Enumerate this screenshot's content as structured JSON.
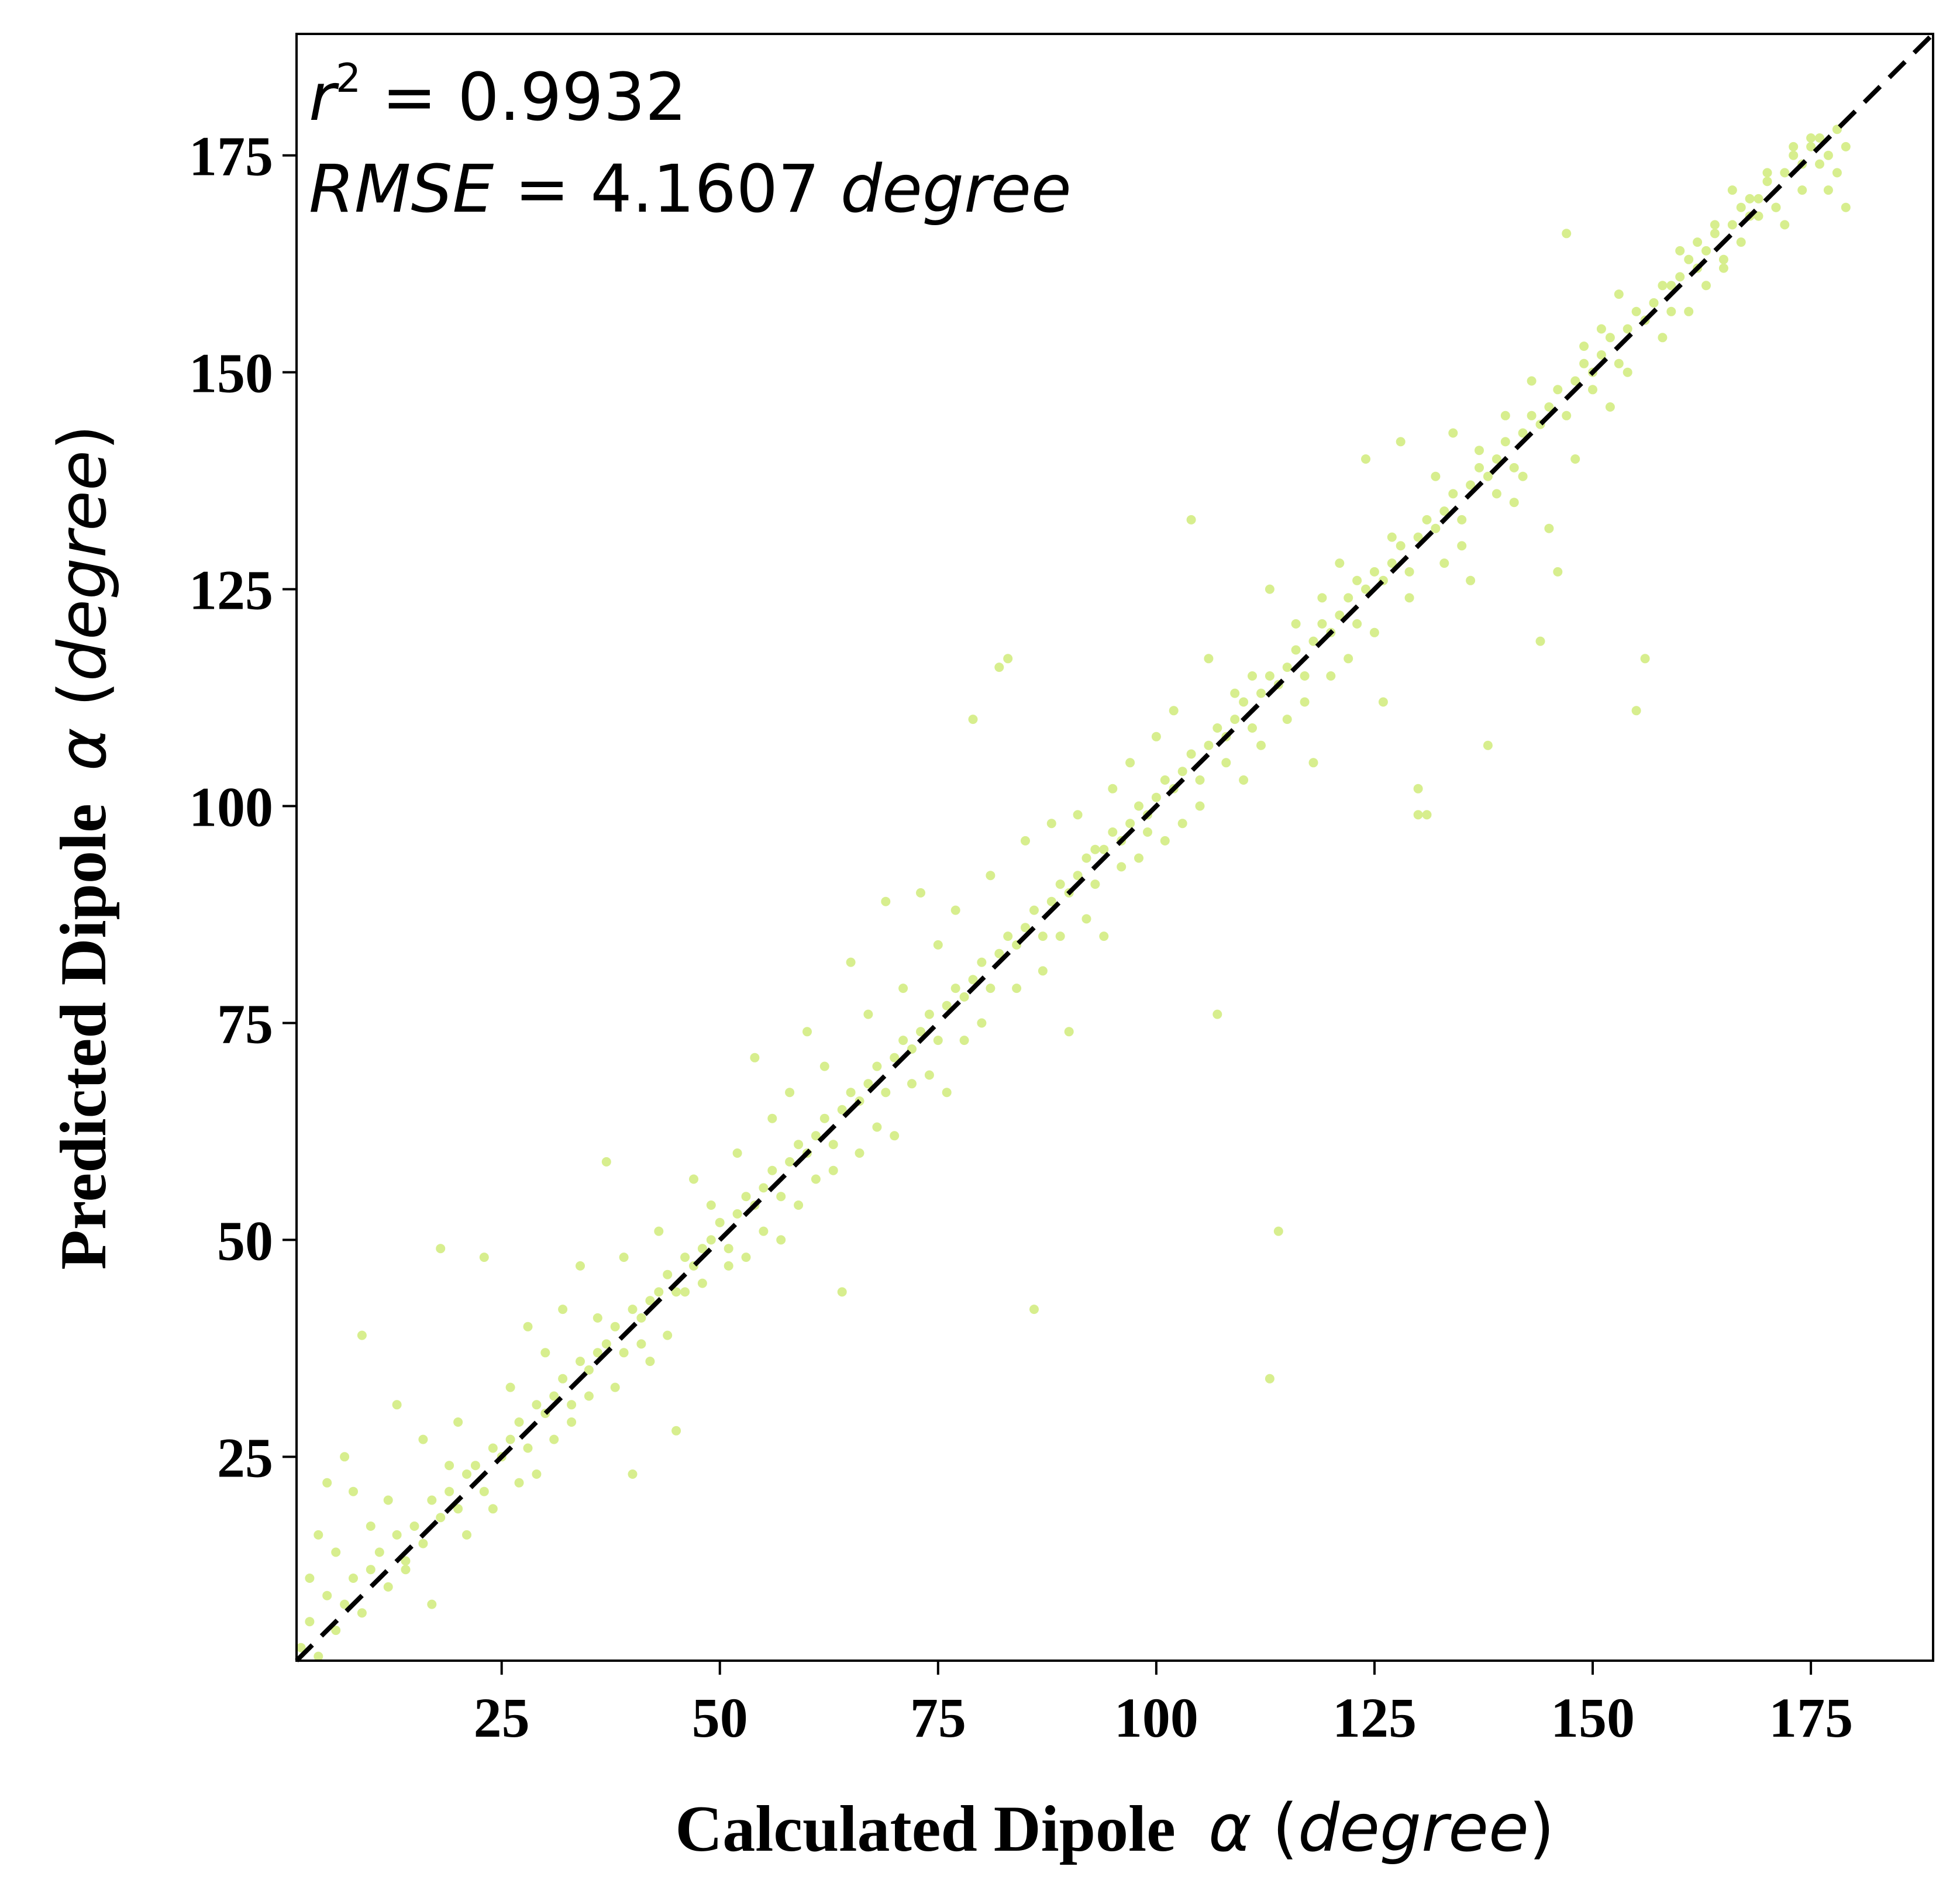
{
  "chart_data": {
    "type": "scatter",
    "title": "",
    "xlabel": {
      "text": "Calculated Dipole",
      "symbol": "α",
      "unit": "degree"
    },
    "ylabel": {
      "text": "Predicted  Dipole",
      "symbol": "α",
      "unit": "degree"
    },
    "xlim": [
      1.5,
      189
    ],
    "ylim": [
      1.5,
      189
    ],
    "xticks": [
      25,
      50,
      75,
      100,
      125,
      150,
      175
    ],
    "yticks": [
      25,
      50,
      75,
      100,
      125,
      150,
      175
    ],
    "xtick_labels": [
      "25",
      "50",
      "75",
      "100",
      "125",
      "150",
      "175"
    ],
    "ytick_labels": [
      "25",
      "50",
      "75",
      "100",
      "125",
      "150",
      "175"
    ],
    "grid": false,
    "reference_line": {
      "style": "dashed",
      "color": "#000000",
      "from": [
        1.5,
        1.5
      ],
      "to": [
        189,
        189
      ]
    },
    "marker_color": "#d7ee8e",
    "annotations": {
      "r2_label": "r",
      "r2_sup": "2",
      "r2_eq": " = ",
      "r2_value": "0.9932",
      "rmse_label": "RMSE",
      "rmse_eq": " = ",
      "rmse_value": "4.1607 ",
      "rmse_unit": "degree"
    },
    "points": [
      [
        2,
        3
      ],
      [
        3,
        6
      ],
      [
        4,
        2
      ],
      [
        5,
        9
      ],
      [
        6,
        5
      ],
      [
        7,
        8
      ],
      [
        8,
        11
      ],
      [
        9,
        7
      ],
      [
        10,
        12
      ],
      [
        11,
        14
      ],
      [
        12,
        10
      ],
      [
        13,
        16
      ],
      [
        14,
        13
      ],
      [
        15,
        17
      ],
      [
        16,
        15
      ],
      [
        17,
        20
      ],
      [
        18,
        18
      ],
      [
        19,
        21
      ],
      [
        20,
        19
      ],
      [
        21,
        23
      ],
      [
        22,
        24
      ],
      [
        23,
        21
      ],
      [
        24,
        26
      ],
      [
        25,
        25
      ],
      [
        26,
        27
      ],
      [
        27,
        29
      ],
      [
        28,
        26
      ],
      [
        29,
        31
      ],
      [
        30,
        30
      ],
      [
        31,
        32
      ],
      [
        32,
        34
      ],
      [
        33,
        31
      ],
      [
        34,
        36
      ],
      [
        35,
        35
      ],
      [
        36,
        37
      ],
      [
        37,
        38
      ],
      [
        38,
        40
      ],
      [
        39,
        37
      ],
      [
        40,
        42
      ],
      [
        41,
        41
      ],
      [
        42,
        43
      ],
      [
        43,
        44
      ],
      [
        44,
        46
      ],
      [
        45,
        44
      ],
      [
        46,
        48
      ],
      [
        47,
        47
      ],
      [
        48,
        49
      ],
      [
        49,
        50
      ],
      [
        50,
        52
      ],
      [
        51,
        49
      ],
      [
        52,
        53
      ],
      [
        53,
        55
      ],
      [
        54,
        54
      ],
      [
        55,
        56
      ],
      [
        56,
        58
      ],
      [
        57,
        55
      ],
      [
        58,
        59
      ],
      [
        59,
        61
      ],
      [
        60,
        60
      ],
      [
        61,
        62
      ],
      [
        62,
        64
      ],
      [
        63,
        61
      ],
      [
        64,
        65
      ],
      [
        65,
        67
      ],
      [
        66,
        66
      ],
      [
        67,
        68
      ],
      [
        68,
        70
      ],
      [
        69,
        67
      ],
      [
        70,
        71
      ],
      [
        71,
        73
      ],
      [
        72,
        72
      ],
      [
        73,
        74
      ],
      [
        74,
        76
      ],
      [
        75,
        73
      ],
      [
        76,
        77
      ],
      [
        77,
        79
      ],
      [
        78,
        78
      ],
      [
        79,
        80
      ],
      [
        80,
        82
      ],
      [
        81,
        79
      ],
      [
        82,
        83
      ],
      [
        83,
        85
      ],
      [
        84,
        84
      ],
      [
        85,
        86
      ],
      [
        86,
        88
      ],
      [
        87,
        85
      ],
      [
        88,
        89
      ],
      [
        89,
        91
      ],
      [
        90,
        90
      ],
      [
        91,
        92
      ],
      [
        92,
        94
      ],
      [
        93,
        91
      ],
      [
        94,
        95
      ],
      [
        95,
        97
      ],
      [
        96,
        96
      ],
      [
        97,
        98
      ],
      [
        98,
        100
      ],
      [
        99,
        97
      ],
      [
        100,
        101
      ],
      [
        101,
        103
      ],
      [
        102,
        102
      ],
      [
        103,
        104
      ],
      [
        104,
        106
      ],
      [
        105,
        103
      ],
      [
        106,
        107
      ],
      [
        107,
        109
      ],
      [
        108,
        108
      ],
      [
        109,
        110
      ],
      [
        110,
        112
      ],
      [
        111,
        109
      ],
      [
        112,
        113
      ],
      [
        113,
        115
      ],
      [
        114,
        114
      ],
      [
        115,
        116
      ],
      [
        116,
        118
      ],
      [
        117,
        115
      ],
      [
        118,
        119
      ],
      [
        119,
        121
      ],
      [
        120,
        120
      ],
      [
        121,
        122
      ],
      [
        122,
        124
      ],
      [
        123,
        121
      ],
      [
        124,
        125
      ],
      [
        125,
        127
      ],
      [
        126,
        126
      ],
      [
        127,
        128
      ],
      [
        128,
        130
      ],
      [
        129,
        127
      ],
      [
        130,
        131
      ],
      [
        131,
        133
      ],
      [
        132,
        132
      ],
      [
        133,
        134
      ],
      [
        134,
        136
      ],
      [
        135,
        133
      ],
      [
        136,
        137
      ],
      [
        137,
        139
      ],
      [
        138,
        138
      ],
      [
        139,
        140
      ],
      [
        140,
        142
      ],
      [
        141,
        139
      ],
      [
        142,
        143
      ],
      [
        143,
        145
      ],
      [
        144,
        144
      ],
      [
        145,
        146
      ],
      [
        146,
        148
      ],
      [
        147,
        145
      ],
      [
        148,
        149
      ],
      [
        149,
        151
      ],
      [
        150,
        150
      ],
      [
        151,
        152
      ],
      [
        152,
        154
      ],
      [
        153,
        151
      ],
      [
        154,
        155
      ],
      [
        155,
        157
      ],
      [
        156,
        156
      ],
      [
        157,
        158
      ],
      [
        158,
        160
      ],
      [
        159,
        157
      ],
      [
        160,
        161
      ],
      [
        161,
        163
      ],
      [
        162,
        162
      ],
      [
        163,
        164
      ],
      [
        164,
        166
      ],
      [
        165,
        163
      ],
      [
        166,
        167
      ],
      [
        167,
        169
      ],
      [
        168,
        168
      ],
      [
        169,
        170
      ],
      [
        170,
        172
      ],
      [
        171,
        169
      ],
      [
        172,
        173
      ],
      [
        173,
        175
      ],
      [
        174,
        174
      ],
      [
        175,
        176
      ],
      [
        176,
        177
      ],
      [
        177,
        175
      ],
      [
        178,
        178
      ],
      [
        179,
        176
      ],
      [
        3,
        11
      ],
      [
        4,
        16
      ],
      [
        5,
        22
      ],
      [
        6,
        14
      ],
      [
        7,
        25
      ],
      [
        8,
        21
      ],
      [
        9,
        39
      ],
      [
        10,
        17
      ],
      [
        12,
        20
      ],
      [
        13,
        31
      ],
      [
        14,
        12
      ],
      [
        16,
        27
      ],
      [
        17,
        8
      ],
      [
        18,
        49
      ],
      [
        19,
        24
      ],
      [
        20,
        29
      ],
      [
        21,
        16
      ],
      [
        23,
        48
      ],
      [
        24,
        19
      ],
      [
        26,
        33
      ],
      [
        27,
        22
      ],
      [
        28,
        40
      ],
      [
        29,
        23
      ],
      [
        30,
        37
      ],
      [
        31,
        27
      ],
      [
        32,
        42
      ],
      [
        33,
        29
      ],
      [
        34,
        47
      ],
      [
        35,
        32
      ],
      [
        36,
        41
      ],
      [
        37,
        59
      ],
      [
        38,
        33
      ],
      [
        39,
        48
      ],
      [
        40,
        23
      ],
      [
        41,
        38
      ],
      [
        42,
        36
      ],
      [
        43,
        51
      ],
      [
        44,
        39
      ],
      [
        45,
        28
      ],
      [
        46,
        44
      ],
      [
        47,
        57
      ],
      [
        48,
        45
      ],
      [
        49,
        54
      ],
      [
        51,
        47
      ],
      [
        52,
        60
      ],
      [
        53,
        48
      ],
      [
        54,
        71
      ],
      [
        55,
        51
      ],
      [
        56,
        64
      ],
      [
        57,
        50
      ],
      [
        58,
        67
      ],
      [
        59,
        54
      ],
      [
        60,
        74
      ],
      [
        61,
        57
      ],
      [
        62,
        70
      ],
      [
        63,
        58
      ],
      [
        64,
        44
      ],
      [
        65,
        82
      ],
      [
        66,
        60
      ],
      [
        67,
        76
      ],
      [
        68,
        63
      ],
      [
        69,
        89
      ],
      [
        70,
        62
      ],
      [
        71,
        79
      ],
      [
        72,
        68
      ],
      [
        73,
        90
      ],
      [
        74,
        69
      ],
      [
        75,
        84
      ],
      [
        76,
        67
      ],
      [
        77,
        88
      ],
      [
        78,
        73
      ],
      [
        79,
        110
      ],
      [
        80,
        75
      ],
      [
        81,
        92
      ],
      [
        82,
        116
      ],
      [
        83,
        117
      ],
      [
        84,
        79
      ],
      [
        85,
        96
      ],
      [
        86,
        42
      ],
      [
        87,
        81
      ],
      [
        88,
        98
      ],
      [
        89,
        85
      ],
      [
        90,
        74
      ],
      [
        91,
        99
      ],
      [
        92,
        87
      ],
      [
        93,
        95
      ],
      [
        94,
        85
      ],
      [
        95,
        102
      ],
      [
        96,
        93
      ],
      [
        97,
        105
      ],
      [
        98,
        94
      ],
      [
        99,
        99
      ],
      [
        100,
        108
      ],
      [
        101,
        96
      ],
      [
        102,
        111
      ],
      [
        103,
        98
      ],
      [
        104,
        133
      ],
      [
        105,
        100
      ],
      [
        106,
        117
      ],
      [
        107,
        76
      ],
      [
        108,
        105
      ],
      [
        109,
        113
      ],
      [
        110,
        103
      ],
      [
        111,
        115
      ],
      [
        112,
        107
      ],
      [
        113,
        125
      ],
      [
        114,
        51
      ],
      [
        115,
        110
      ],
      [
        116,
        121
      ],
      [
        117,
        112
      ],
      [
        118,
        105
      ],
      [
        119,
        124
      ],
      [
        120,
        115
      ],
      [
        121,
        128
      ],
      [
        122,
        117
      ],
      [
        123,
        126
      ],
      [
        124,
        140
      ],
      [
        125,
        120
      ],
      [
        126,
        112
      ],
      [
        127,
        131
      ],
      [
        128,
        142
      ],
      [
        129,
        124
      ],
      [
        130,
        102
      ],
      [
        131,
        99
      ],
      [
        132,
        138
      ],
      [
        133,
        128
      ],
      [
        134,
        143
      ],
      [
        135,
        130
      ],
      [
        136,
        126
      ],
      [
        137,
        141
      ],
      [
        138,
        107
      ],
      [
        139,
        136
      ],
      [
        140,
        145
      ],
      [
        141,
        135
      ],
      [
        142,
        138
      ],
      [
        143,
        149
      ],
      [
        144,
        119
      ],
      [
        145,
        132
      ],
      [
        146,
        127
      ],
      [
        147,
        166
      ],
      [
        148,
        140
      ],
      [
        149,
        153
      ],
      [
        150,
        148
      ],
      [
        151,
        155
      ],
      [
        152,
        146
      ],
      [
        153,
        159
      ],
      [
        154,
        150
      ],
      [
        155,
        111
      ],
      [
        156,
        117
      ],
      [
        157,
        158
      ],
      [
        158,
        154
      ],
      [
        159,
        160
      ],
      [
        160,
        164
      ],
      [
        161,
        157
      ],
      [
        162,
        165
      ],
      [
        163,
        160
      ],
      [
        164,
        167
      ],
      [
        165,
        162
      ],
      [
        166,
        171
      ],
      [
        167,
        165
      ],
      [
        168,
        170
      ],
      [
        169,
        168
      ],
      [
        170,
        173
      ],
      [
        171,
        169
      ],
      [
        172,
        167
      ],
      [
        173,
        176
      ],
      [
        174,
        171
      ],
      [
        175,
        177
      ],
      [
        176,
        174
      ],
      [
        177,
        171
      ],
      [
        178,
        173
      ],
      [
        179,
        169
      ],
      [
        113,
        34
      ],
      [
        130,
        99
      ]
    ]
  }
}
